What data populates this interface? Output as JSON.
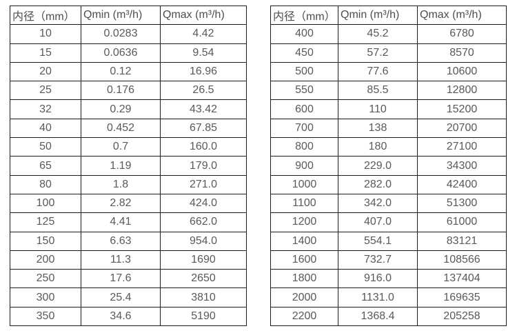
{
  "colors": {
    "background": "#ffffff",
    "border": "#1a1a1a",
    "header_text": "#4d4d4d",
    "cell_text": "#595959"
  },
  "tables": [
    {
      "name": "flow-spec-small-diameters",
      "headers": [
        "内径（mm）",
        "Qmin (m³/h)",
        "Qmax (m³/h)"
      ],
      "rows": [
        [
          "10",
          "0.0283",
          "4.42"
        ],
        [
          "15",
          "0.0636",
          "9.54"
        ],
        [
          "20",
          "0.12",
          "16.96"
        ],
        [
          "25",
          "0.176",
          "26.5"
        ],
        [
          "32",
          "0.29",
          "43.42"
        ],
        [
          "40",
          "0.452",
          "67.85"
        ],
        [
          "50",
          "0.7",
          "160.0"
        ],
        [
          "65",
          "1.19",
          "179.0"
        ],
        [
          "80",
          "1.8",
          "271.0"
        ],
        [
          "100",
          "2.82",
          "424.0"
        ],
        [
          "125",
          "4.41",
          "662.0"
        ],
        [
          "150",
          "6.63",
          "954.0"
        ],
        [
          "200",
          "11.3",
          "1690"
        ],
        [
          "250",
          "17.6",
          "2650"
        ],
        [
          "300",
          "25.4",
          "3810"
        ],
        [
          "350",
          "34.6",
          "5190"
        ]
      ]
    },
    {
      "name": "flow-spec-large-diameters",
      "headers": [
        "内径（mm）",
        "Qmin (m³/h)",
        "Qmax (m³/h)"
      ],
      "rows": [
        [
          "400",
          "45.2",
          "6780"
        ],
        [
          "450",
          "57.2",
          "8570"
        ],
        [
          "500",
          "77.6",
          "10600"
        ],
        [
          "550",
          "85.5",
          "12800"
        ],
        [
          "600",
          "110",
          "15200"
        ],
        [
          "700",
          "138",
          "20700"
        ],
        [
          "800",
          "180",
          "27100"
        ],
        [
          "900",
          "229.0",
          "34300"
        ],
        [
          "1000",
          "282.0",
          "42400"
        ],
        [
          "1100",
          "342.0",
          "51300"
        ],
        [
          "1200",
          "407.0",
          "61000"
        ],
        [
          "1400",
          "554.1",
          "83121"
        ],
        [
          "1600",
          "732.7",
          "108566"
        ],
        [
          "1800",
          "916.0",
          "137404"
        ],
        [
          "2000",
          "1131.0",
          "169635"
        ],
        [
          "2200",
          "1368.4",
          "205258"
        ]
      ]
    }
  ]
}
